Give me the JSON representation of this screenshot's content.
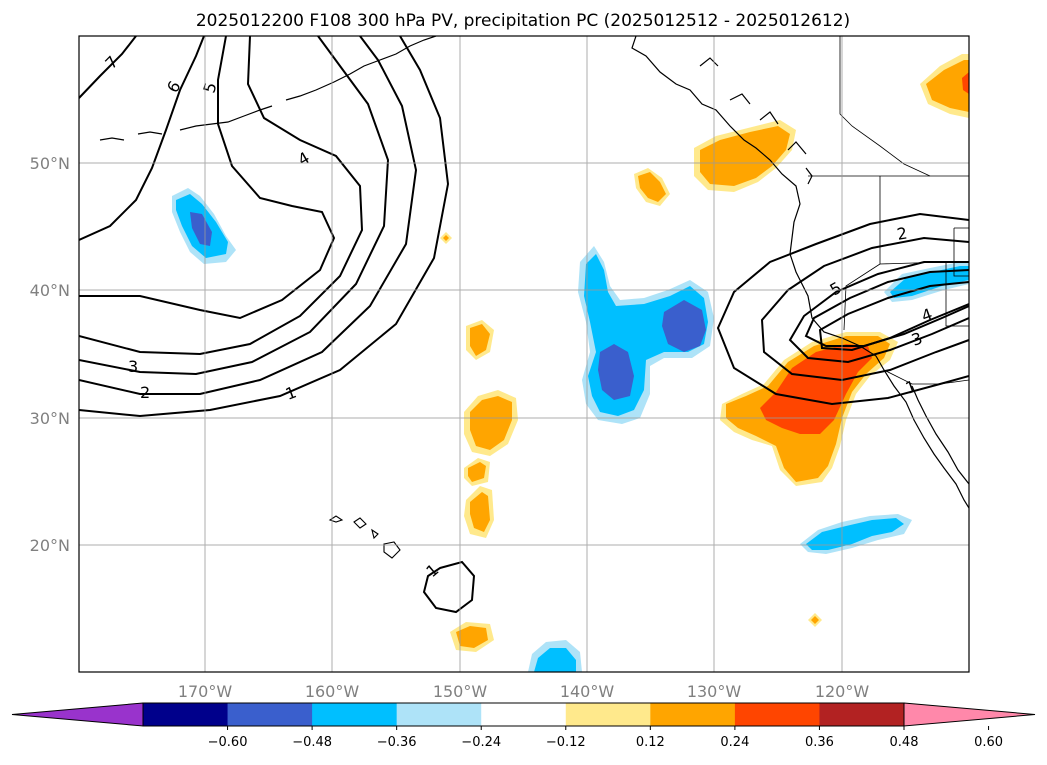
{
  "title": "2025012200 F108 300 hPa PV, precipitation PC (2025012512 - 2025012612)",
  "map": {
    "lon_range": [
      -180,
      -110
    ],
    "lat_range": [
      10,
      60
    ],
    "lon_ticks": [
      "170°W",
      "160°W",
      "150°W",
      "140°W",
      "130°W",
      "120°W"
    ],
    "lat_ticks": [
      "20°N",
      "30°N",
      "40°N",
      "50°N"
    ],
    "gridlines": true
  },
  "pv_contour_labels": [
    "7",
    "6",
    "5",
    "4",
    "3",
    "2",
    "1",
    "1",
    "2",
    "5",
    "4",
    "3",
    "1"
  ],
  "colorbar": {
    "orientation": "horizontal",
    "extend": "both",
    "ticks": [
      "−0.60",
      "−0.48",
      "−0.36",
      "−0.24",
      "−0.12",
      "0.12",
      "0.24",
      "0.36",
      "0.48",
      "0.60"
    ],
    "colors": [
      "#9933cc",
      "#00008b",
      "#3a5fcd",
      "#00bfff",
      "#aee3f8",
      "#ffffff",
      "#ffe98c",
      "#ffa500",
      "#ff4500",
      "#b22222",
      "#ff88aa"
    ]
  }
}
